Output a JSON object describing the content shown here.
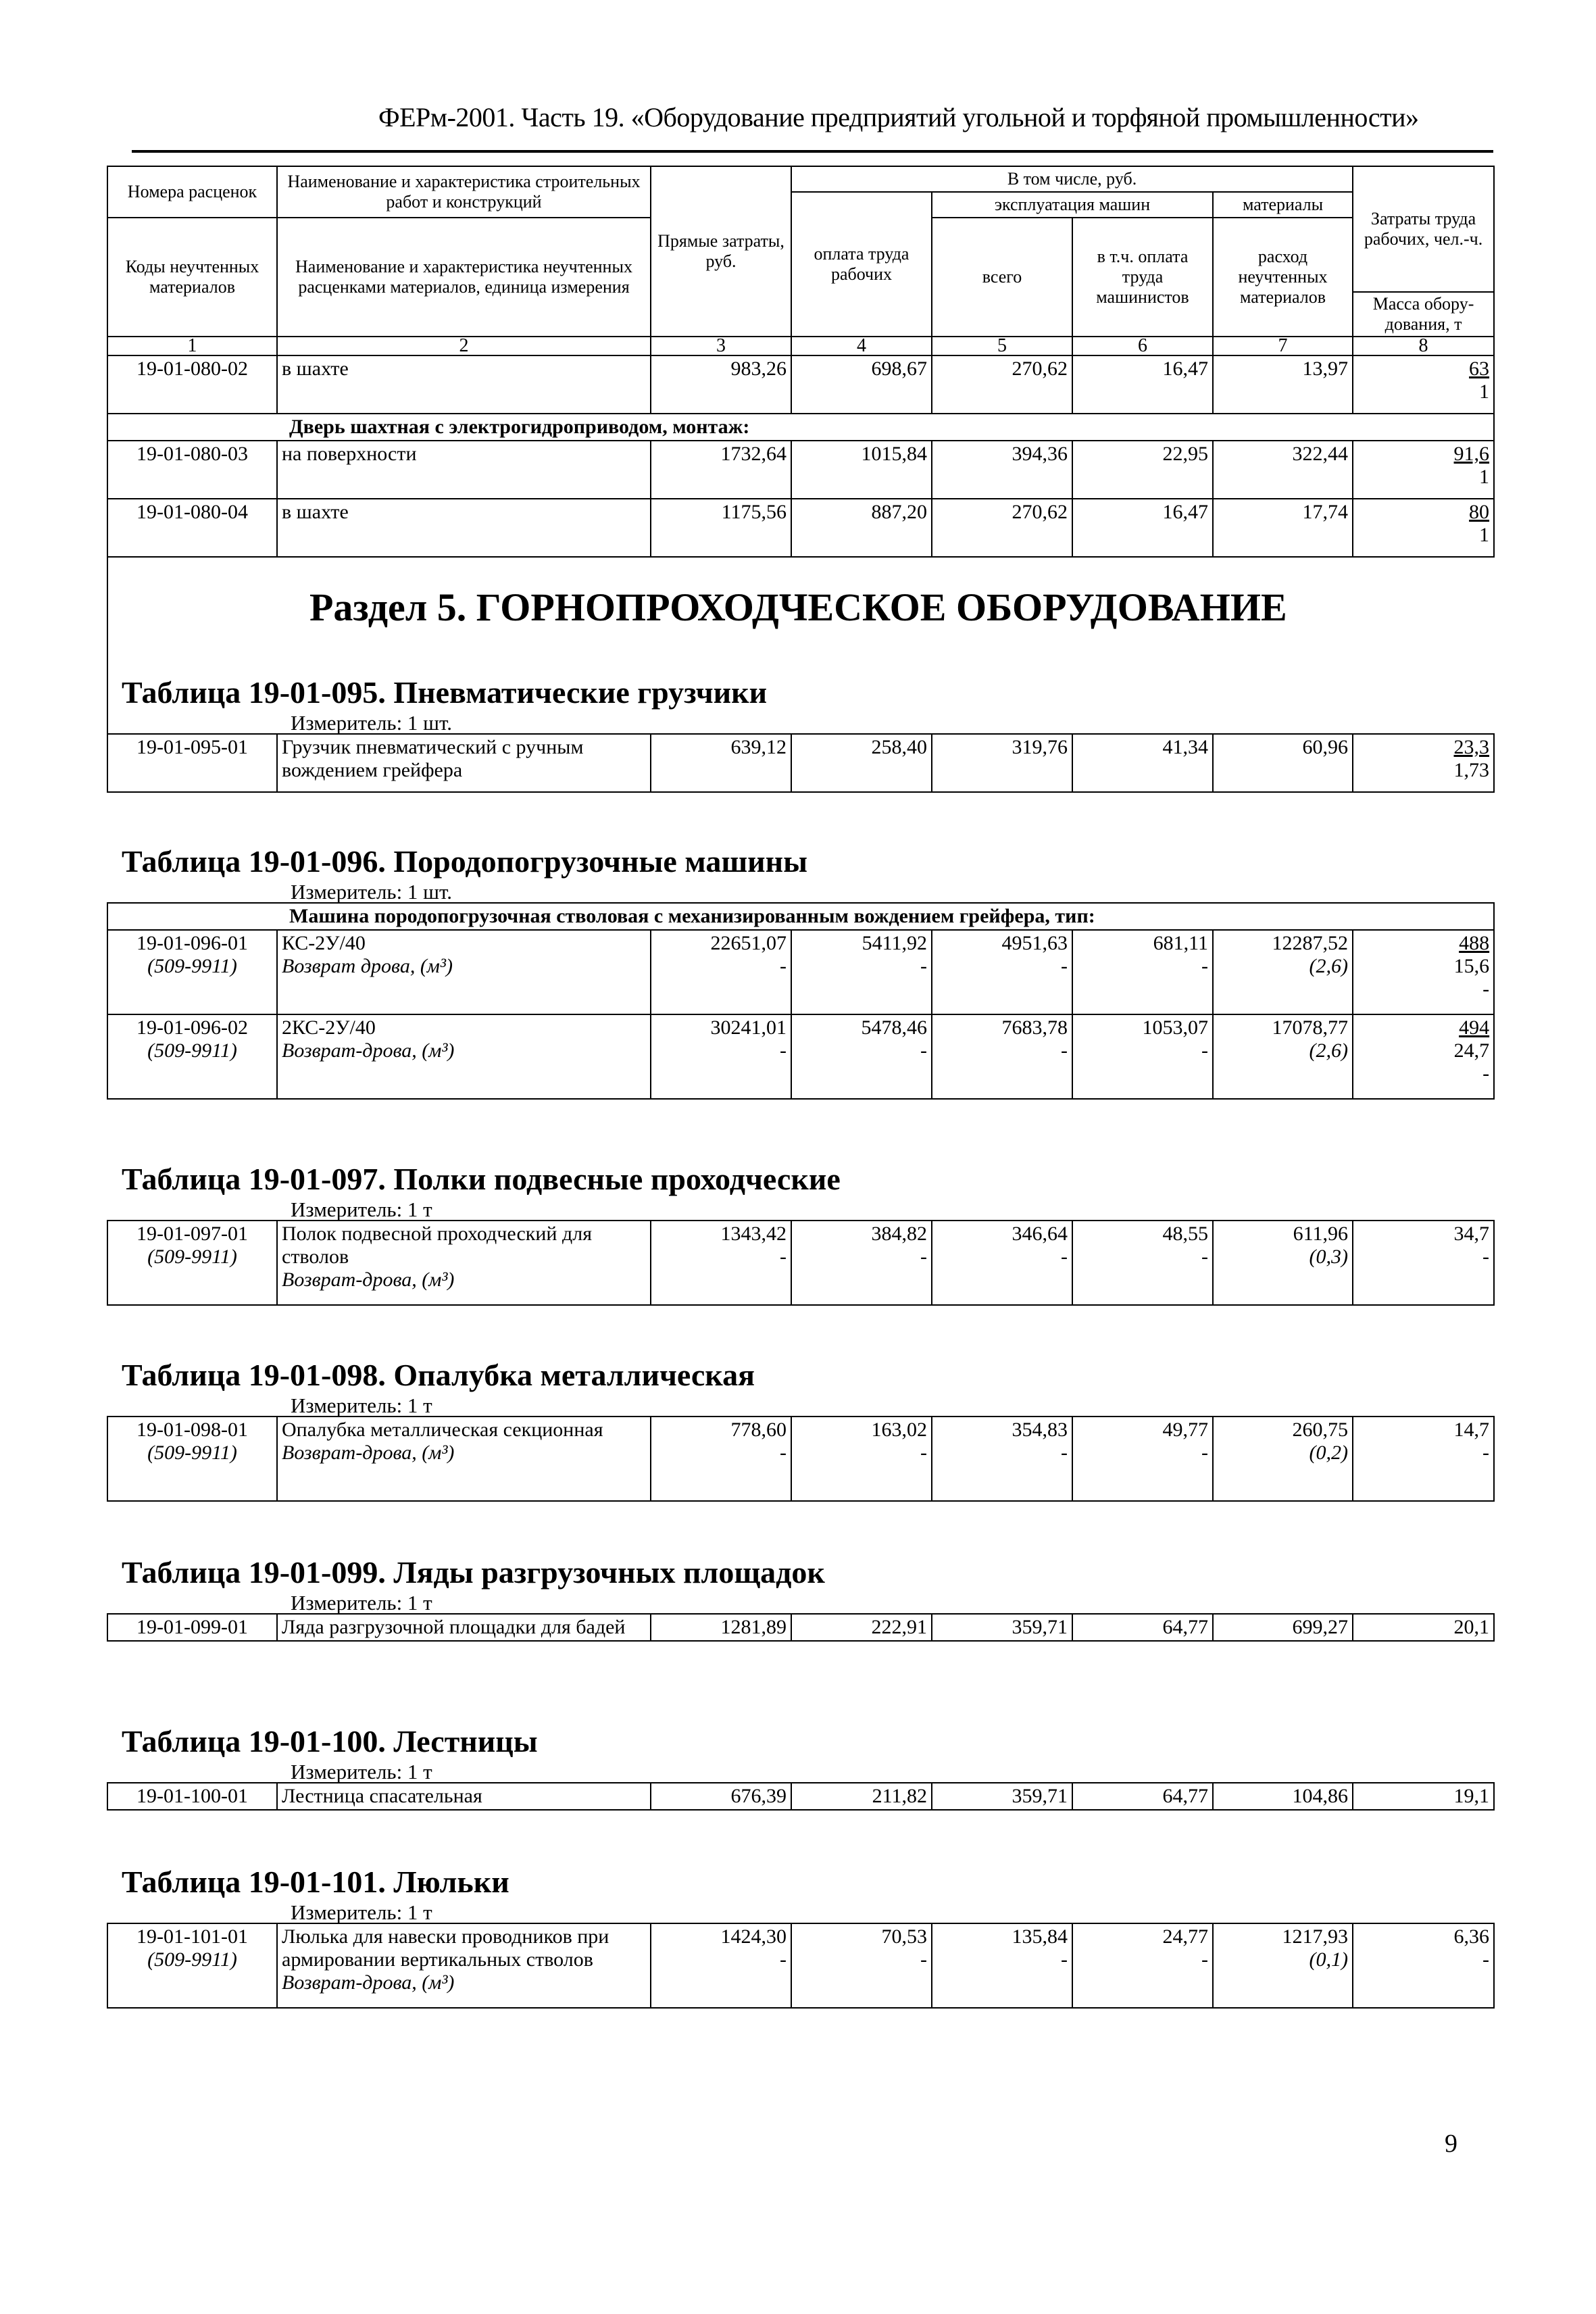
{
  "header_title": "ФЕРм-2001. Часть 19. «Оборудование предприятий угольной и торфяной промышленности»",
  "main_table": {
    "headers": {
      "rate_numbers": "Номера расценок",
      "work_name": "Наименование и характеристика строительных работ и конструкций",
      "direct_costs": "Прямые затраты, руб.",
      "including": "В том числе, руб.",
      "labor_costs": "Затраты труда рабочих, чел.-ч.",
      "machines": "эксплуатация машин",
      "materials": "материалы",
      "worker_pay": "оплата труда рабочих",
      "total": "всего",
      "operator_pay": "в т.ч. оплата труда машинистов",
      "unaccounted_materials": "расход неучтенных материалов",
      "material_codes": "Коды неучтенных материалов",
      "material_name": "Наименование и характеристика неучтенных расценками материалов, единица измерения",
      "equipment_mass": "Масса обору-дования, т"
    },
    "col_numbers": [
      "1",
      "2",
      "3",
      "4",
      "5",
      "6",
      "7",
      "8"
    ],
    "rows": [
      {
        "code": "19-01-080-02",
        "name": "в шахте",
        "values": [
          "983,26",
          "698,67",
          "270,62",
          "16,47",
          "13,97"
        ],
        "labor": "63",
        "mass": "1"
      },
      {
        "group": "Дверь шахтная с электрогидроприводом, монтаж:"
      },
      {
        "code": "19-01-080-03",
        "name": "на поверхности",
        "values": [
          "1732,64",
          "1015,84",
          "394,36",
          "22,95",
          "322,44"
        ],
        "labor": "91,6",
        "mass": "1"
      },
      {
        "code": "19-01-080-04",
        "name": "в шахте",
        "values": [
          "1175,56",
          "887,20",
          "270,62",
          "16,47",
          "17,74"
        ],
        "labor": "80",
        "mass": "1"
      }
    ]
  },
  "section_title": "Раздел 5. ГОРНОПРОХОДЧЕСКОЕ ОБОРУДОВАНИЕ",
  "tables": [
    {
      "title": "Таблица 19-01-095. Пневматические грузчики",
      "unit": "Измеритель: 1 шт.",
      "rows": [
        {
          "code": "19-01-095-01",
          "name": "Грузчик пневматический с ручным вождением грейфера",
          "values": [
            "639,12",
            "258,40",
            "319,76",
            "41,34",
            "60,96"
          ],
          "labor": "23,3",
          "mass": "1,73"
        }
      ]
    },
    {
      "title": "Таблица 19-01-096. Породопогрузочные машины",
      "unit": "Измеритель: 1 шт.",
      "rows": [
        {
          "group": "Машина породопогрузочная стволовая с механизированным вождением грейфера, тип:"
        },
        {
          "code": "19-01-096-01",
          "name": "КС-2У/40",
          "values": [
            "22651,07",
            "5411,92",
            "4951,63",
            "681,11",
            "12287,52"
          ],
          "labor": "488",
          "mass": "15,6",
          "sub": {
            "code": "(509-9911)",
            "name": "Возврат дрова, (м³)",
            "values": [
              "-",
              "-",
              "-",
              "-",
              "(2,6)"
            ],
            "labor": "-"
          }
        },
        {
          "code": "19-01-096-02",
          "name": "2КС-2У/40",
          "values": [
            "30241,01",
            "5478,46",
            "7683,78",
            "1053,07",
            "17078,77"
          ],
          "labor": "494",
          "mass": "24,7",
          "sub": {
            "code": "(509-9911)",
            "name": "Возврат-дрова, (м³)",
            "values": [
              "-",
              "-",
              "-",
              "-",
              "(2,6)"
            ],
            "labor": "-"
          }
        }
      ]
    },
    {
      "title": "Таблица 19-01-097. Полки подвесные проходческие",
      "unit": "Измеритель: 1 т",
      "rows": [
        {
          "code": "19-01-097-01",
          "name": "Полок подвесной проходческий для стволов",
          "values": [
            "1343,42",
            "384,82",
            "346,64",
            "48,55",
            "611,96"
          ],
          "labor": "34,7",
          "sub": {
            "code": "(509-9911)",
            "name": "Возврат-дрова, (м³)",
            "values": [
              "-",
              "-",
              "-",
              "-",
              "(0,3)"
            ],
            "labor": "-"
          }
        }
      ]
    },
    {
      "title": "Таблица 19-01-098. Опалубка металлическая",
      "unit": "Измеритель: 1 т",
      "rows": [
        {
          "code": "19-01-098-01",
          "name": "Опалубка металлическая секционная",
          "values": [
            "778,60",
            "163,02",
            "354,83",
            "49,77",
            "260,75"
          ],
          "labor": "14,7",
          "sub": {
            "code": "(509-9911)",
            "name": "Возврат-дрова, (м³)",
            "values": [
              "-",
              "-",
              "-",
              "-",
              "(0,2)"
            ],
            "labor": "-"
          }
        }
      ]
    },
    {
      "title": "Таблица 19-01-099. Ляды разгрузочных площадок",
      "unit": "Измеритель: 1 т",
      "rows": [
        {
          "code": "19-01-099-01",
          "name": "Ляда разгрузочной площадки для бадей",
          "values": [
            "1281,89",
            "222,91",
            "359,71",
            "64,77",
            "699,27"
          ],
          "labor": "20,1"
        }
      ]
    },
    {
      "title": "Таблица 19-01-100. Лестницы",
      "unit": "Измеритель: 1 т",
      "rows": [
        {
          "code": "19-01-100-01",
          "name": "Лестница спасательная",
          "values": [
            "676,39",
            "211,82",
            "359,71",
            "64,77",
            "104,86"
          ],
          "labor": "19,1"
        }
      ]
    },
    {
      "title": "Таблица 19-01-101. Люльки",
      "unit": "Измеритель: 1 т",
      "rows": [
        {
          "code": "19-01-101-01",
          "name": "Люлька для навески проводников при армировании вертикальных стволов",
          "values": [
            "1424,30",
            "70,53",
            "135,84",
            "24,77",
            "1217,93"
          ],
          "labor": "6,36",
          "sub": {
            "code": "(509-9911)",
            "name": "Возврат-дрова, (м³)",
            "values": [
              "-",
              "-",
              "-",
              "-",
              "(0,1)"
            ],
            "labor": "-"
          }
        }
      ]
    }
  ],
  "page_number": "9"
}
